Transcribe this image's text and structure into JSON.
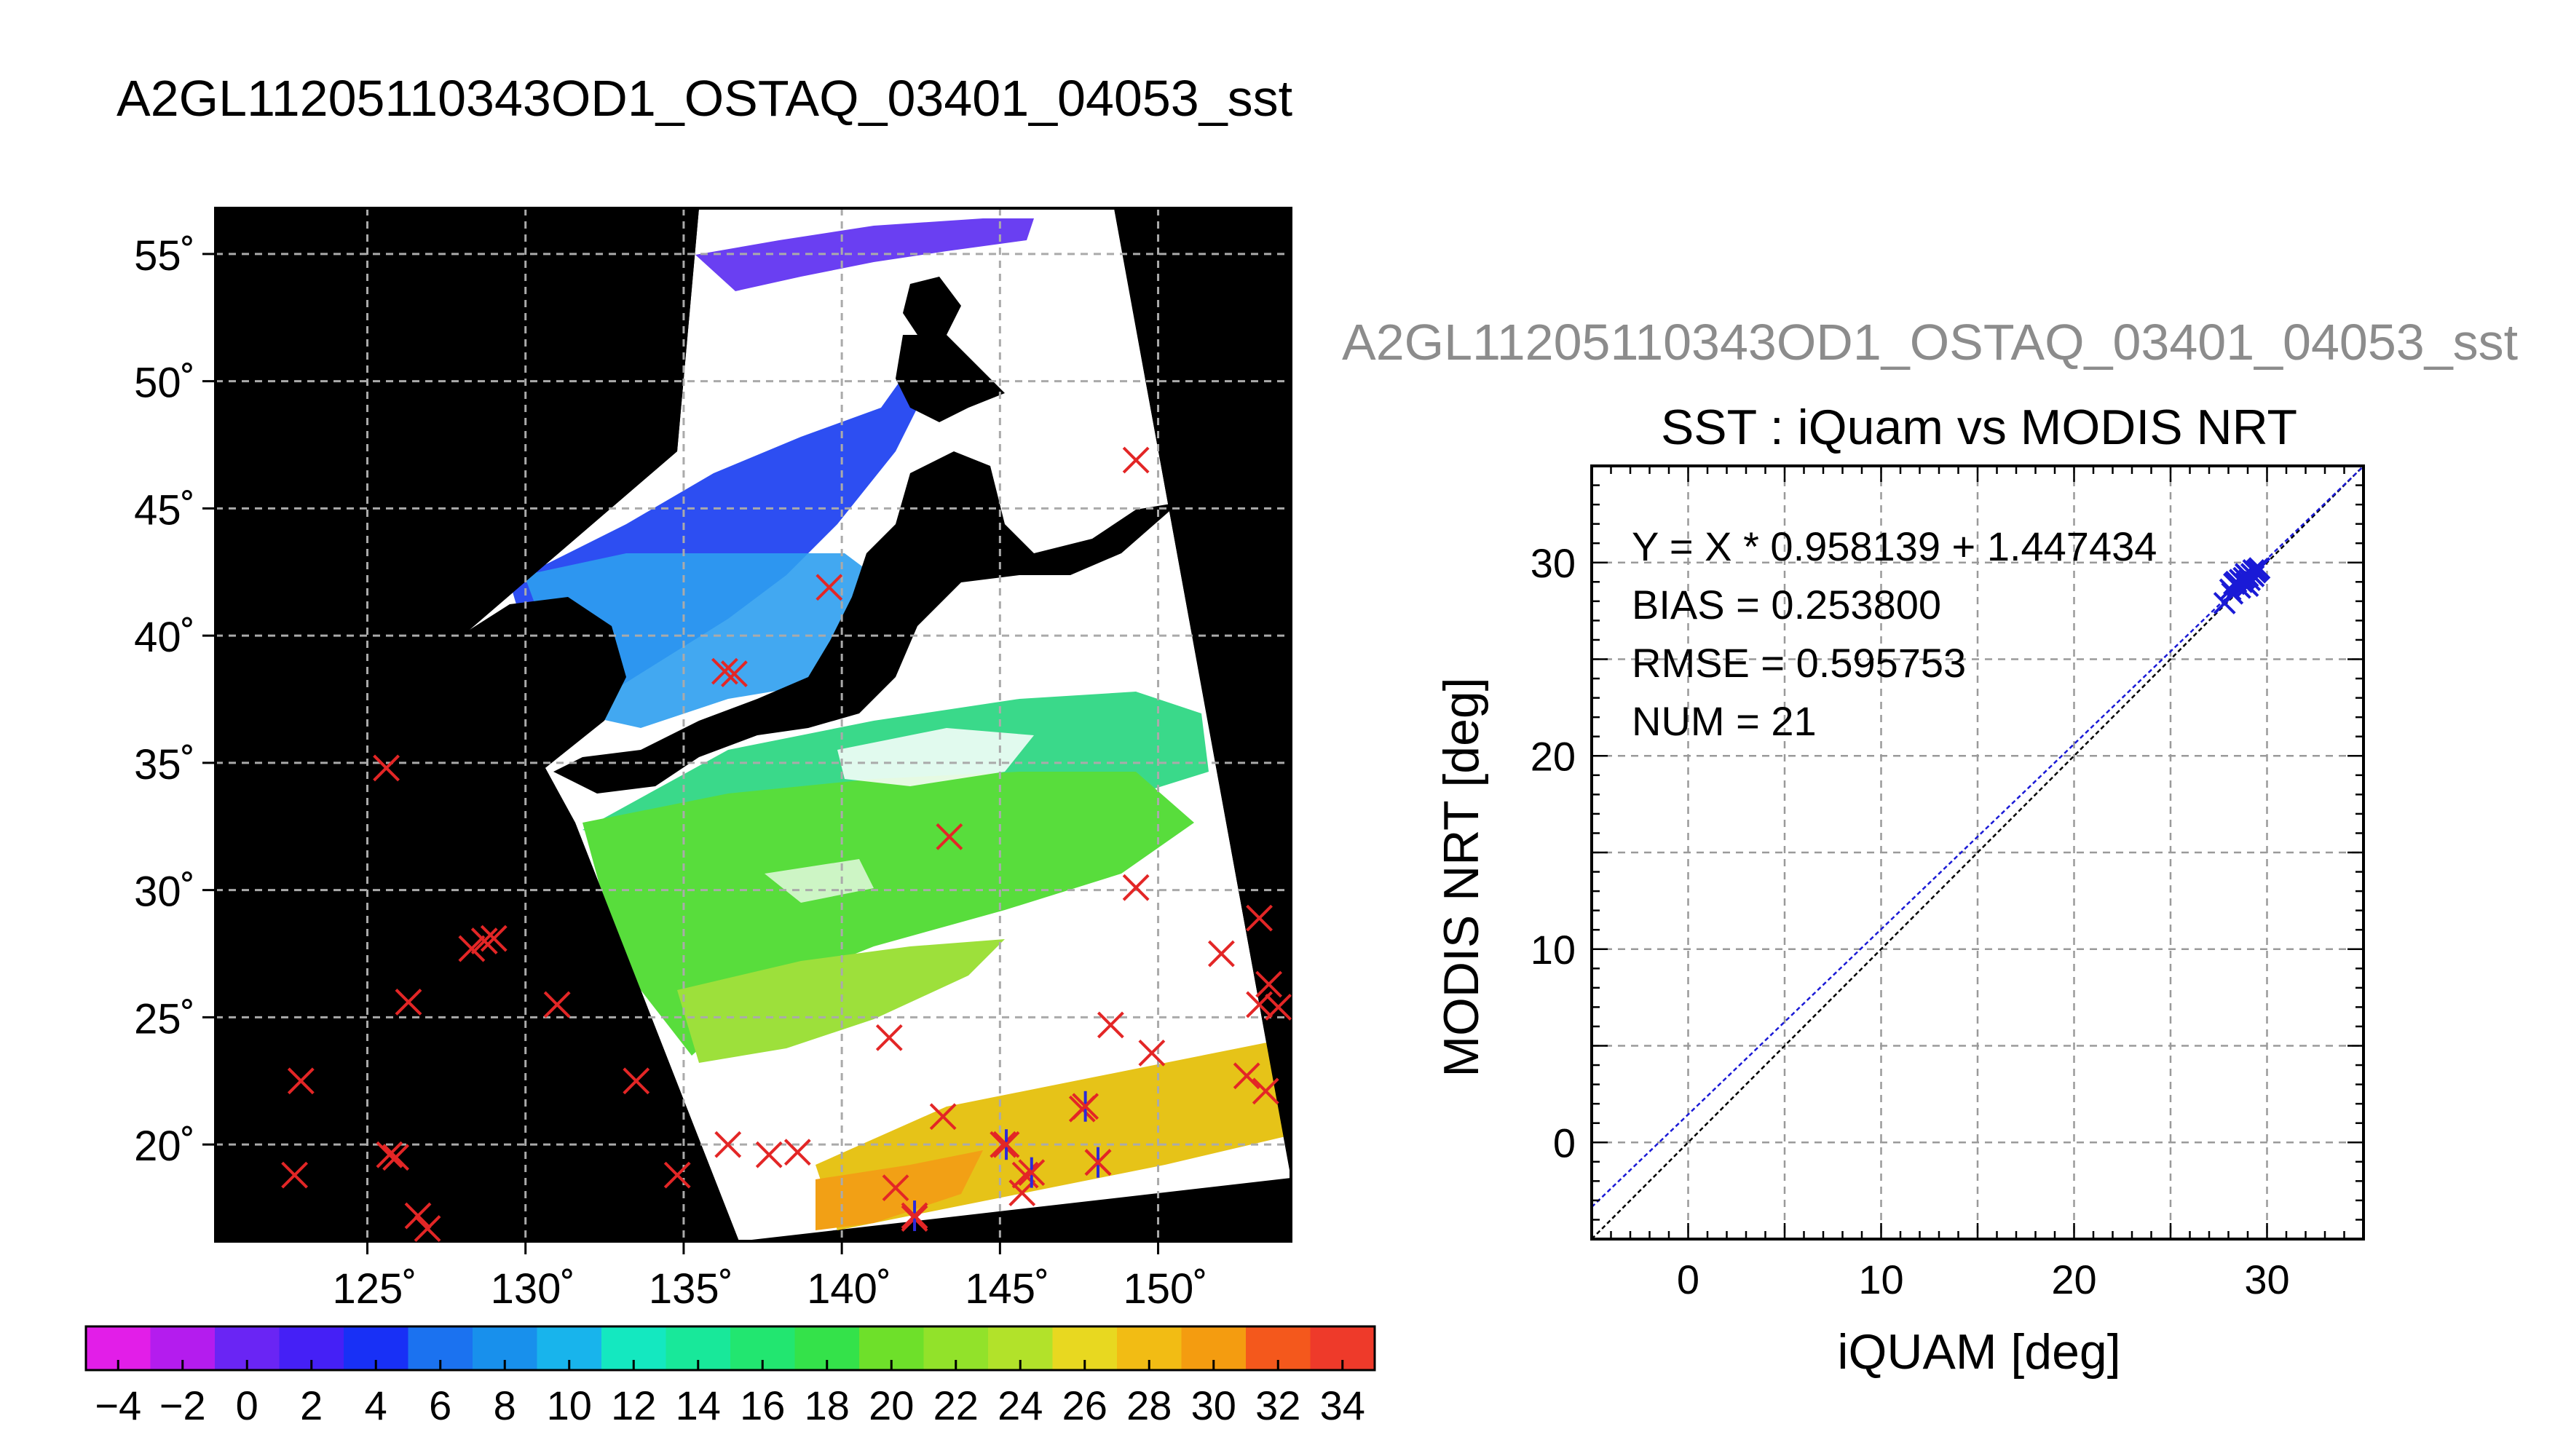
{
  "figure": {
    "title": "A2GL11205110343OD1_OSTAQ_03401_04053_sst",
    "subtitle": "A2GL11205110343OD1_OSTAQ_03401_04053_sst"
  },
  "map": {
    "lat_ticks": [
      "55˚",
      "50˚",
      "45˚",
      "40˚",
      "35˚",
      "30˚",
      "25˚",
      "20˚"
    ],
    "lon_ticks": [
      "125˚",
      "130˚",
      "135˚",
      "140˚",
      "145˚",
      "150˚"
    ],
    "colorbar_ticks": [
      "−4",
      "−2",
      "0",
      "2",
      "4",
      "6",
      "8",
      "10",
      "12",
      "14",
      "16",
      "18",
      "20",
      "22",
      "24",
      "26",
      "28",
      "30",
      "32",
      "34"
    ],
    "colorbar_range": [
      -5,
      35
    ],
    "colors": {
      "land": "#000000",
      "cloud": "#ffffff",
      "marker_iquam": "#e32626",
      "marker_match": "#2b2bd8"
    }
  },
  "chart_data": {
    "type": "scatter",
    "title": "SST : iQuam vs MODIS NRT",
    "xlabel": "iQUAM [deg]",
    "ylabel": "MODIS NRT [deg]",
    "xlim": [
      -5,
      35
    ],
    "ylim": [
      -5,
      35
    ],
    "xticks": [
      "0",
      "10",
      "20",
      "30"
    ],
    "yticks": [
      "0",
      "10",
      "20",
      "30"
    ],
    "grid": true,
    "stats": [
      "Y = X * 0.958139 + 1.447434",
      "BIAS = 0.253800",
      "RMSE = 0.595753",
      "NUM = 21"
    ],
    "fit": {
      "slope": 0.958139,
      "intercept": 1.447434,
      "color": "#1a1ad6"
    },
    "identity_line": {
      "color": "#000000"
    },
    "marker_color": "#1a1ad6",
    "points": [
      {
        "x": 27.8,
        "y": 27.9
      },
      {
        "x": 28.1,
        "y": 28.6
      },
      {
        "x": 28.3,
        "y": 28.9
      },
      {
        "x": 28.4,
        "y": 29.0
      },
      {
        "x": 28.5,
        "y": 28.8
      },
      {
        "x": 28.6,
        "y": 29.1
      },
      {
        "x": 28.7,
        "y": 29.0
      },
      {
        "x": 28.8,
        "y": 29.2
      },
      {
        "x": 28.9,
        "y": 28.9
      },
      {
        "x": 29.0,
        "y": 29.3
      },
      {
        "x": 29.1,
        "y": 29.1
      },
      {
        "x": 29.2,
        "y": 29.4
      },
      {
        "x": 29.3,
        "y": 29.3
      },
      {
        "x": 29.4,
        "y": 29.5
      },
      {
        "x": 29.5,
        "y": 29.6
      },
      {
        "x": 29.6,
        "y": 29.7
      },
      {
        "x": 28.2,
        "y": 28.4
      },
      {
        "x": 28.9,
        "y": 29.4
      },
      {
        "x": 29.0,
        "y": 28.8
      },
      {
        "x": 29.3,
        "y": 29.6
      },
      {
        "x": 28.6,
        "y": 28.7
      }
    ]
  }
}
